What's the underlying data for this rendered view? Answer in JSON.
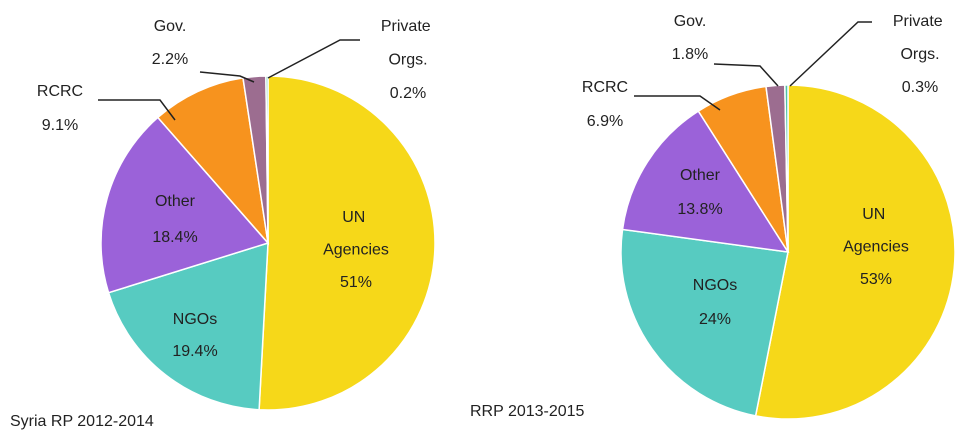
{
  "chart_data": [
    {
      "type": "pie",
      "title": "Syria RP 2012-2014",
      "categories": [
        "UN Agencies",
        "NGOs",
        "Other",
        "RCRC",
        "Gov.",
        "Private Orgs."
      ],
      "values": [
        51,
        19.4,
        18.4,
        9.1,
        2.2,
        0.2
      ],
      "value_labels": [
        "51%",
        "19.4%",
        "18.4%",
        "9.1%",
        "2.2%",
        "0.2%"
      ],
      "colors": [
        "#f6d819",
        "#57cbc1",
        "#9b62d9",
        "#f7931e",
        "#9c6d90",
        "#4fc3a6"
      ]
    },
    {
      "type": "pie",
      "title": "RRP 2013-2015",
      "categories": [
        "UN Agencies",
        "NGOs",
        "Other",
        "RCRC",
        "Gov.",
        "Private Orgs."
      ],
      "values": [
        53,
        24,
        13.8,
        6.9,
        1.8,
        0.3
      ],
      "value_labels": [
        "53%",
        "24%",
        "13.8%",
        "6.9%",
        "1.8%",
        "0.3%"
      ],
      "colors": [
        "#f6d819",
        "#57cbc1",
        "#9b62d9",
        "#f7931e",
        "#9c6d90",
        "#4fc3a6"
      ]
    }
  ]
}
